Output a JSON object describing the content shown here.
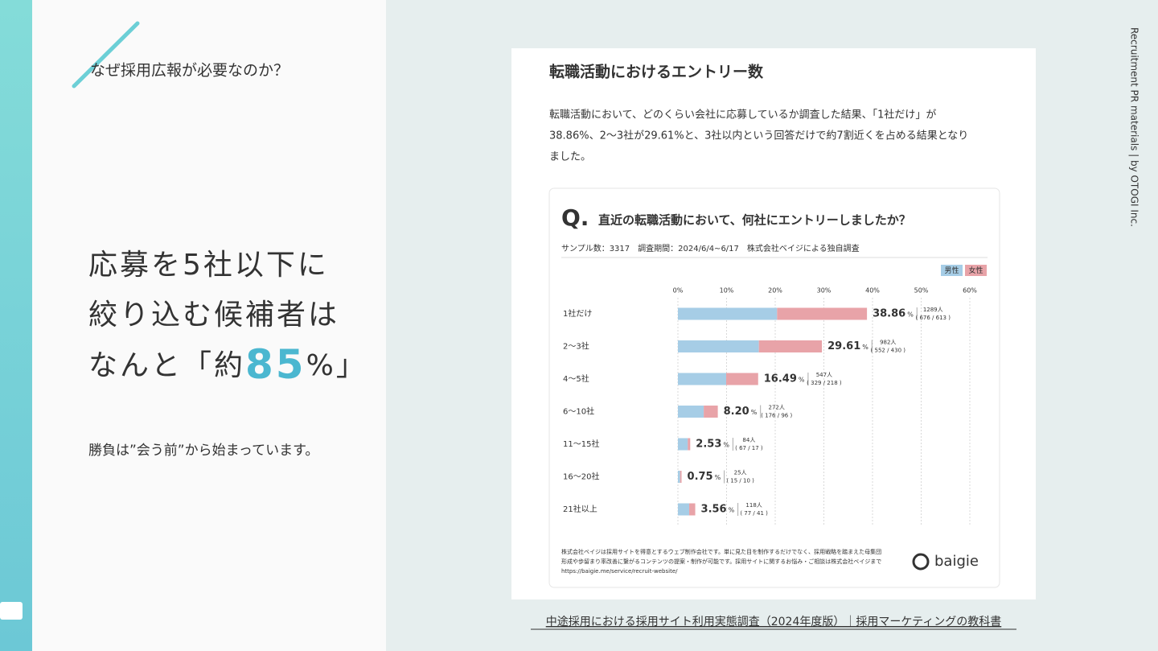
{
  "slide": {
    "header": "なぜ採用広報が必要なのか？",
    "headline_lines": [
      "応募を5社以下に",
      "絞り込む候補者は"
    ],
    "headline_last": {
      "before": "なんと「約",
      "number": "85",
      "after": "%」"
    },
    "subtext": "勝負は”会う前”から始まっています。",
    "side_label": "Recruitment PR materials | by OTOGI Inc.",
    "caption": "中途採用における採用サイト利用実態調査（2024年度版）｜採用マーケティングの教科書"
  },
  "article": {
    "title": "転職活動におけるエントリー数",
    "paragraph": [
      "転職活動において、どのくらい会社に応募しているか調査した結果、「1社だけ」が",
      "38.86%、2〜3社が29.61%と、3社以内という回答だけで約7割近くを占める結果となり",
      "ました。"
    ]
  },
  "chart_data": {
    "type": "stacked_barh",
    "q_mark": "Q.",
    "title": "直近の転職活動において、何社にエントリーしましたか？",
    "subtitle": "サンプル数：3317　調査期間：2024/6/4~6/17　株式会社ベイジによる独自調査",
    "categories": [
      "1社だけ",
      "2〜3社",
      "4〜5社",
      "6〜10社",
      "11〜15社",
      "16〜20社",
      "21社以上"
    ],
    "series": [
      {
        "name": "男性",
        "color": "#a6cde6",
        "values": [
          20.38,
          16.64,
          9.92,
          5.31,
          2.02,
          0.45,
          2.32
        ]
      },
      {
        "name": "女性",
        "color": "#e8a3a8",
        "values": [
          18.48,
          12.96,
          6.57,
          2.89,
          0.51,
          0.3,
          1.24
        ]
      }
    ],
    "totals": [
      38.86,
      29.61,
      16.49,
      8.2,
      2.53,
      0.75,
      3.56
    ],
    "total_labels": [
      "38.86",
      "29.61",
      "16.49",
      "8.20",
      "2.53",
      "0.75",
      "3.56"
    ],
    "percent_sign": "%",
    "count_labels": [
      "1289人",
      "982人",
      "547人",
      "272人",
      "84人",
      "25人",
      "118人"
    ],
    "breakdown_labels": [
      "( 676 / 613 )",
      "( 552 / 430 )",
      "( 329 / 218 )",
      "( 176 / 96 )",
      "( 67 / 17 )",
      "( 15 / 10 )",
      "( 77 / 41 )"
    ],
    "xlim": [
      0,
      60
    ],
    "xticks": [
      {
        "value": 0,
        "label": "0%"
      },
      {
        "value": 10,
        "label": "10%"
      },
      {
        "value": 20,
        "label": "20%"
      },
      {
        "value": 30,
        "label": "30%"
      },
      {
        "value": 40,
        "label": "40%"
      },
      {
        "value": 50,
        "label": "50%"
      },
      {
        "value": 60,
        "label": "60%"
      }
    ],
    "grid": true,
    "legend": "top-right",
    "footer": [
      "株式会社ベイジは採用サイトを得意とするウェブ制作会社です。単に見た目を制作するだけでなく、採用戦略を踏まえた母集団",
      "形成や歩留まり率改善に繋がるコンテンツの提案・制作が可能です。採用サイトに関するお悩み・ご相談は株式会社ベイジまで",
      "https://baigie.me/service/recruit-website/"
    ],
    "logo": "baigie"
  }
}
